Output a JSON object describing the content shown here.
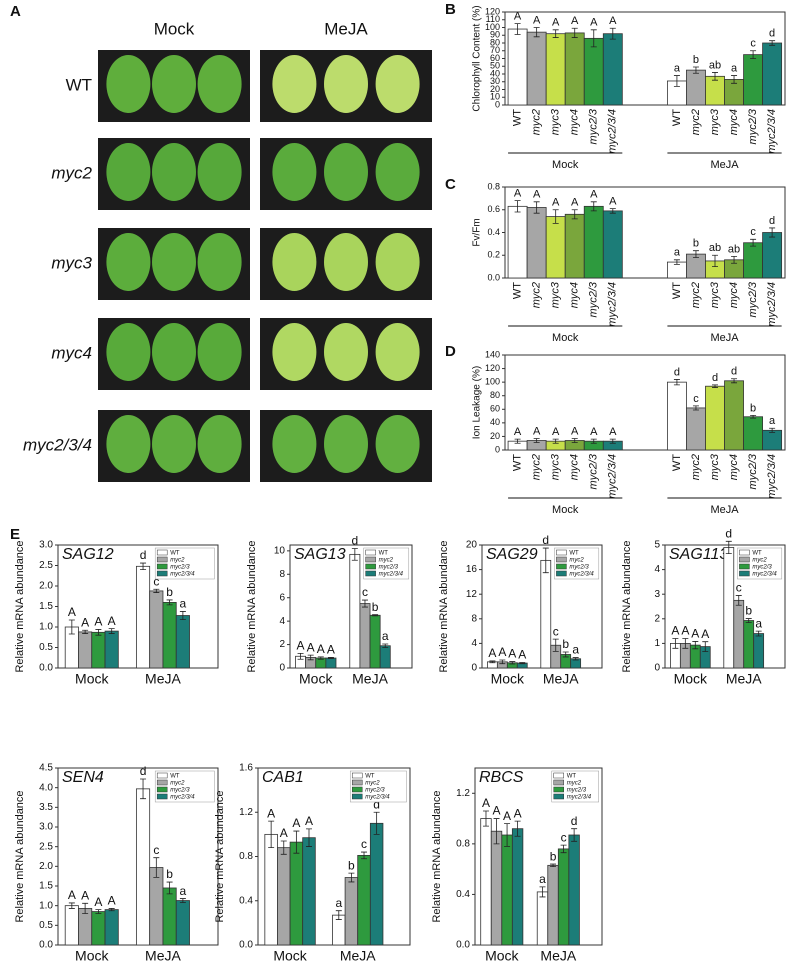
{
  "panel_a": {
    "label": "A",
    "columns": [
      "Mock",
      "MeJA"
    ],
    "rows": [
      "WT",
      "myc2",
      "myc3",
      "myc4",
      "myc2/3/4"
    ]
  },
  "chart_data": [
    {
      "type": "bar",
      "panel": "B",
      "ylabel": "Chlorophyll Content (%)",
      "groups": [
        "Mock",
        "MeJA"
      ],
      "categories": [
        "WT",
        "myc2",
        "myc3",
        "myc4",
        "myc2/3",
        "myc2/3/4"
      ],
      "colors": [
        "#ffffff",
        "#a6a6a6",
        "#c6df4a",
        "#7aa63c",
        "#2e9a3e",
        "#1c7d78"
      ],
      "values": [
        [
          98,
          94,
          92,
          93,
          86,
          92
        ],
        [
          31,
          45,
          37,
          33,
          65,
          80
        ]
      ],
      "errors": [
        [
          7,
          6,
          5,
          6,
          11,
          7
        ],
        [
          7,
          4,
          5,
          5,
          5,
          3
        ]
      ],
      "letters": [
        [
          "A",
          "A",
          "A",
          "A",
          "A",
          "A"
        ],
        [
          "a",
          "b",
          "ab",
          "a",
          "c",
          "d"
        ]
      ],
      "ylim": [
        0,
        120
      ],
      "yticks": [
        0,
        10,
        20,
        30,
        40,
        50,
        60,
        70,
        80,
        90,
        100,
        110,
        120
      ]
    },
    {
      "type": "bar",
      "panel": "C",
      "ylabel": "Fv/Fm",
      "groups": [
        "Mock",
        "MeJA"
      ],
      "categories": [
        "WT",
        "myc2",
        "myc3",
        "myc4",
        "myc2/3",
        "myc2/3/4"
      ],
      "colors": [
        "#ffffff",
        "#a6a6a6",
        "#c6df4a",
        "#7aa63c",
        "#2e9a3e",
        "#1c7d78"
      ],
      "values": [
        [
          0.63,
          0.62,
          0.54,
          0.56,
          0.63,
          0.59
        ],
        [
          0.14,
          0.21,
          0.15,
          0.16,
          0.31,
          0.4
        ]
      ],
      "errors": [
        [
          0.05,
          0.05,
          0.06,
          0.04,
          0.04,
          0.02
        ],
        [
          0.02,
          0.03,
          0.05,
          0.03,
          0.03,
          0.04
        ]
      ],
      "letters": [
        [
          "A",
          "A",
          "A",
          "A",
          "A",
          "A"
        ],
        [
          "a",
          "b",
          "ab",
          "ab",
          "c",
          "d"
        ]
      ],
      "ylim": [
        0,
        0.8
      ],
      "yticks": [
        {
          "value": 0,
          "label": "0.0"
        },
        0.2,
        0.4,
        0.6,
        0.8
      ]
    },
    {
      "type": "bar",
      "panel": "D",
      "ylabel": "Ion Leakage (%)",
      "groups": [
        "Mock",
        "MeJA"
      ],
      "categories": [
        "WT",
        "myc2",
        "myc3",
        "myc4",
        "myc2/3",
        "myc2/3/4"
      ],
      "colors": [
        "#ffffff",
        "#a6a6a6",
        "#c6df4a",
        "#7aa63c",
        "#2e9a3e",
        "#1c7d78"
      ],
      "values": [
        [
          13,
          14,
          13,
          14,
          13,
          13
        ],
        [
          100,
          62,
          94,
          102,
          49,
          29
        ]
      ],
      "errors": [
        [
          3,
          3,
          3,
          3,
          3,
          3
        ],
        [
          4,
          3,
          2,
          3,
          2,
          3
        ]
      ],
      "letters": [
        [
          "A",
          "A",
          "A",
          "A",
          "A",
          "A"
        ],
        [
          "d",
          "c",
          "d",
          "d",
          "b",
          "a"
        ]
      ],
      "ylim": [
        0,
        140
      ],
      "yticks": [
        0,
        20,
        40,
        60,
        80,
        100,
        120,
        140
      ]
    },
    {
      "type": "bar",
      "panel": "E",
      "title": "SAG12",
      "ylabel": "Relative mRNA abundance",
      "groups": [
        "Mock",
        "MeJA"
      ],
      "categories": [
        "WT",
        "myc2",
        "myc2/3",
        "myc2/3/4"
      ],
      "colors": [
        "#ffffff",
        "#a6a6a6",
        "#2e9a3e",
        "#1c7d78"
      ],
      "legend": "upper right",
      "values": [
        [
          1.0,
          0.88,
          0.87,
          0.9
        ],
        [
          2.48,
          1.88,
          1.6,
          1.28
        ]
      ],
      "errors": [
        [
          0.17,
          0.04,
          0.07,
          0.06
        ],
        [
          0.08,
          0.04,
          0.06,
          0.1
        ]
      ],
      "letters": [
        [
          "A",
          "A",
          "A",
          "A"
        ],
        [
          "d",
          "c",
          "b",
          "a"
        ]
      ],
      "ylim": [
        0,
        3
      ],
      "yticks": [
        {
          "value": 0,
          "label": "0.0"
        },
        0.5,
        {
          "value": 1,
          "label": "1.0"
        },
        1.5,
        {
          "value": 2,
          "label": "2.0"
        },
        2.5,
        {
          "value": 3,
          "label": "3.0"
        }
      ]
    },
    {
      "type": "bar",
      "title": "SAG13",
      "ylabel": "Relative mRNA abundance",
      "groups": [
        "Mock",
        "MeJA"
      ],
      "categories": [
        "WT",
        "myc2",
        "myc2/3",
        "myc2/3/4"
      ],
      "colors": [
        "#ffffff",
        "#a6a6a6",
        "#2e9a3e",
        "#1c7d78"
      ],
      "legend": "upper right",
      "values": [
        [
          1.0,
          0.9,
          0.85,
          0.85
        ],
        [
          9.7,
          5.5,
          4.5,
          1.9
        ]
      ],
      "errors": [
        [
          0.25,
          0.2,
          0.1,
          0.05
        ],
        [
          0.5,
          0.3,
          0.05,
          0.15
        ]
      ],
      "letters": [
        [
          "A",
          "A",
          "A",
          "A"
        ],
        [
          "d",
          "c",
          "b",
          "a"
        ]
      ],
      "ylim": [
        0,
        10.5
      ],
      "yticks": [
        0,
        2,
        4,
        6,
        8,
        10
      ]
    },
    {
      "type": "bar",
      "title": "SAG29",
      "ylabel": "Relative mRNA abundance",
      "groups": [
        "Mock",
        "MeJA"
      ],
      "categories": [
        "WT",
        "myc2",
        "myc2/3",
        "myc2/3/4"
      ],
      "colors": [
        "#ffffff",
        "#a6a6a6",
        "#2e9a3e",
        "#1c7d78"
      ],
      "legend": "upper right",
      "values": [
        [
          1.0,
          1.0,
          0.85,
          0.8
        ],
        [
          17.5,
          3.7,
          2.2,
          1.5
        ]
      ],
      "errors": [
        [
          0.15,
          0.3,
          0.2,
          0.1
        ],
        [
          2,
          1,
          0.4,
          0.2
        ]
      ],
      "letters": [
        [
          "A",
          "A",
          "A",
          "A"
        ],
        [
          "d",
          "c",
          "b",
          "a"
        ]
      ],
      "ylim": [
        0,
        20
      ],
      "yticks": [
        0,
        4,
        8,
        12,
        16,
        20
      ]
    },
    {
      "type": "bar",
      "title": "SAG113",
      "ylabel": "Relative mRNA abundance",
      "groups": [
        "Mock",
        "MeJA"
      ],
      "categories": [
        "WT",
        "myc2",
        "myc2/3",
        "myc2/3/4"
      ],
      "colors": [
        "#ffffff",
        "#a6a6a6",
        "#2e9a3e",
        "#1c7d78"
      ],
      "legend": "upper right",
      "values": [
        [
          1.0,
          1.0,
          0.93,
          0.87
        ],
        [
          4.9,
          2.75,
          1.93,
          1.4
        ]
      ],
      "errors": [
        [
          0.2,
          0.2,
          0.15,
          0.2
        ],
        [
          0.25,
          0.2,
          0.08,
          0.1
        ]
      ],
      "letters": [
        [
          "A",
          "A",
          "A",
          "A"
        ],
        [
          "d",
          "c",
          "b",
          "a"
        ]
      ],
      "ylim": [
        0,
        5
      ],
      "yticks": [
        0,
        1,
        2,
        3,
        4,
        5
      ]
    },
    {
      "type": "bar",
      "title": "SEN4",
      "ylabel": "Relative mRNA abundance",
      "groups": [
        "Mock",
        "MeJA"
      ],
      "categories": [
        "WT",
        "myc2",
        "myc2/3",
        "myc2/3/4"
      ],
      "colors": [
        "#ffffff",
        "#a6a6a6",
        "#2e9a3e",
        "#1c7d78"
      ],
      "legend": "upper right",
      "values": [
        [
          1.0,
          0.93,
          0.85,
          0.9
        ],
        [
          3.97,
          1.97,
          1.45,
          1.13
        ]
      ],
      "errors": [
        [
          0.07,
          0.13,
          0.05,
          0.03
        ],
        [
          0.25,
          0.25,
          0.15,
          0.05
        ]
      ],
      "letters": [
        [
          "A",
          "A",
          "A",
          "A"
        ],
        [
          "d",
          "c",
          "b",
          "a"
        ]
      ],
      "ylim": [
        0,
        4.5
      ],
      "yticks": [
        {
          "value": 0,
          "label": "0.0"
        },
        0.5,
        {
          "value": 1,
          "label": "1.0"
        },
        1.5,
        {
          "value": 2,
          "label": "2.0"
        },
        2.5,
        {
          "value": 3,
          "label": "3.0"
        },
        3.5,
        {
          "value": 4,
          "label": "4.0"
        },
        4.5
      ]
    },
    {
      "type": "bar",
      "title": "CAB1",
      "ylabel": "Relative mRNA abundance",
      "groups": [
        "Mock",
        "MeJA"
      ],
      "categories": [
        "WT",
        "myc2",
        "myc2/3",
        "myc2/3/4"
      ],
      "colors": [
        "#ffffff",
        "#a6a6a6",
        "#2e9a3e",
        "#1c7d78"
      ],
      "legend": "upper right",
      "values": [
        [
          1.0,
          0.88,
          0.93,
          0.97
        ],
        [
          0.27,
          0.61,
          0.81,
          1.1
        ]
      ],
      "errors": [
        [
          0.12,
          0.06,
          0.1,
          0.08
        ],
        [
          0.04,
          0.04,
          0.03,
          0.1
        ]
      ],
      "letters": [
        [
          "A",
          "A",
          "A",
          "A"
        ],
        [
          "a",
          "b",
          "c",
          "d"
        ]
      ],
      "ylim": [
        0,
        1.6
      ],
      "yticks": [
        {
          "value": 0,
          "label": "0.0"
        },
        0.4,
        0.8,
        1.2,
        1.6
      ]
    },
    {
      "type": "bar",
      "title": "RBCS",
      "ylabel": "Relative mRNA abundance",
      "groups": [
        "Mock",
        "MeJA"
      ],
      "categories": [
        "WT",
        "myc2",
        "myc2/3",
        "myc2/3/4"
      ],
      "colors": [
        "#ffffff",
        "#a6a6a6",
        "#2e9a3e",
        "#1c7d78"
      ],
      "legend": "upper right",
      "values": [
        [
          1.0,
          0.9,
          0.87,
          0.92
        ],
        [
          0.42,
          0.63,
          0.76,
          0.87
        ]
      ],
      "errors": [
        [
          0.06,
          0.1,
          0.09,
          0.06
        ],
        [
          0.04,
          0.01,
          0.03,
          0.05
        ]
      ],
      "letters": [
        [
          "A",
          "A",
          "A",
          "A"
        ],
        [
          "a",
          "b",
          "c",
          "d"
        ]
      ],
      "ylim": [
        0,
        1.4
      ],
      "yticks": [
        {
          "value": 0,
          "label": "0.0"
        },
        0.4,
        0.8,
        1.2
      ]
    }
  ]
}
